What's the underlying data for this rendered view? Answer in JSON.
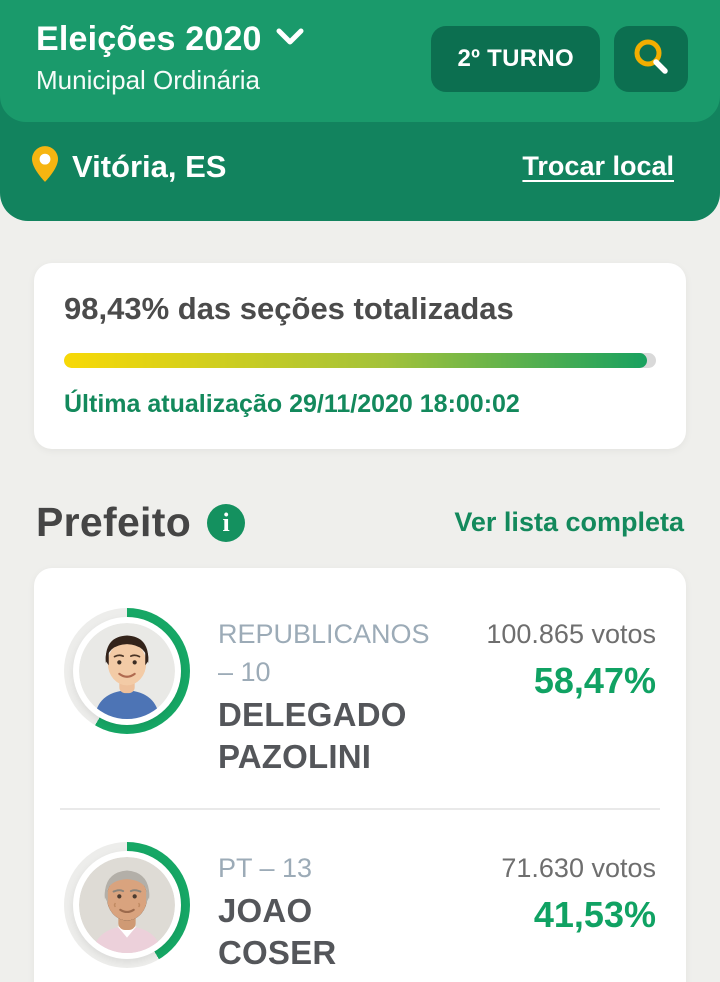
{
  "theme": {
    "header_green": "#1a9a6b",
    "bar_dark_green": "#12835e",
    "button_green": "#0c6f50",
    "accent_green": "#13895c",
    "percent_green": "#10a263",
    "pin_yellow": "#f6b511",
    "magnifier_yellow": "#f2ae00",
    "ring_green": "#16a765",
    "ring_track": "#ededeb",
    "progress_gradient_start": "#f8d906",
    "progress_gradient_end": "#18a15f"
  },
  "header": {
    "title": "Eleições 2020",
    "subtitle": "Municipal Ordinária",
    "round_button_label": "2º TURNO"
  },
  "location_bar": {
    "location": "Vitória, ES",
    "change_link_label": "Trocar local"
  },
  "totalization": {
    "title": "98,43% das seções totalizadas",
    "percent": 98.43,
    "updated": "Última atualização 29/11/2020 18:00:02"
  },
  "section": {
    "title": "Prefeito",
    "info_icon_label": "i",
    "see_all_label": "Ver lista completa"
  },
  "candidates": [
    {
      "party": "REPUBLICANOS – 10",
      "name": "DELEGADO PAZOLINI",
      "votes": "100.865 votos",
      "percent_label": "58,47%",
      "percent": 58.47
    },
    {
      "party": "PT – 13",
      "name": "JOAO COSER",
      "votes": "71.630 votos",
      "percent_label": "41,53%",
      "percent": 41.53
    }
  ]
}
